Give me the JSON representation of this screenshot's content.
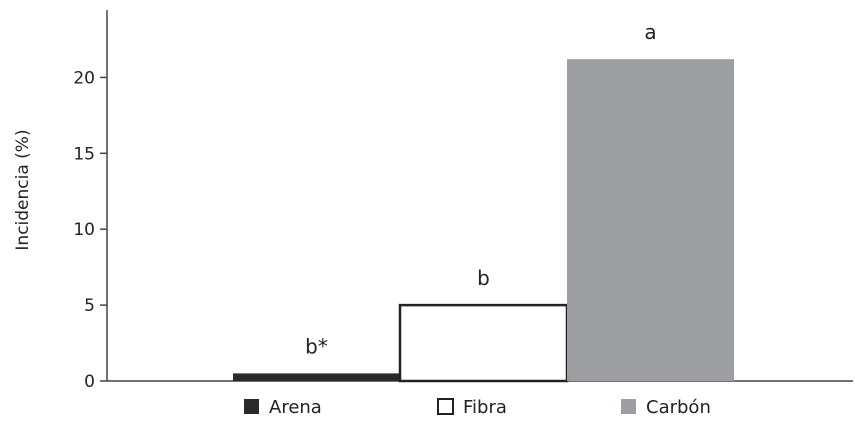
{
  "chart_data": {
    "type": "bar",
    "categories": [
      "Arena",
      "Fibra",
      "Carbón"
    ],
    "values": [
      0.5,
      5,
      21.2
    ],
    "annotations": [
      "b*",
      "b",
      "a"
    ],
    "ylabel": "Incidencia (%)",
    "xlabel": "",
    "ylim": [
      0,
      24
    ],
    "yticks": [
      "0",
      "5",
      "10",
      "15",
      "20"
    ],
    "colors": [
      "#2a2a2a",
      "#ffffff",
      "#9d9ea2"
    ],
    "outline_color": "#222222",
    "grid": false,
    "legend": {
      "placement": "bottom",
      "items": [
        {
          "label": "Arena",
          "color": "#2a2a2a"
        },
        {
          "label": "Fibra",
          "color": "#ffffff"
        },
        {
          "label": "Carbón",
          "color": "#9d9ea2"
        }
      ]
    }
  }
}
